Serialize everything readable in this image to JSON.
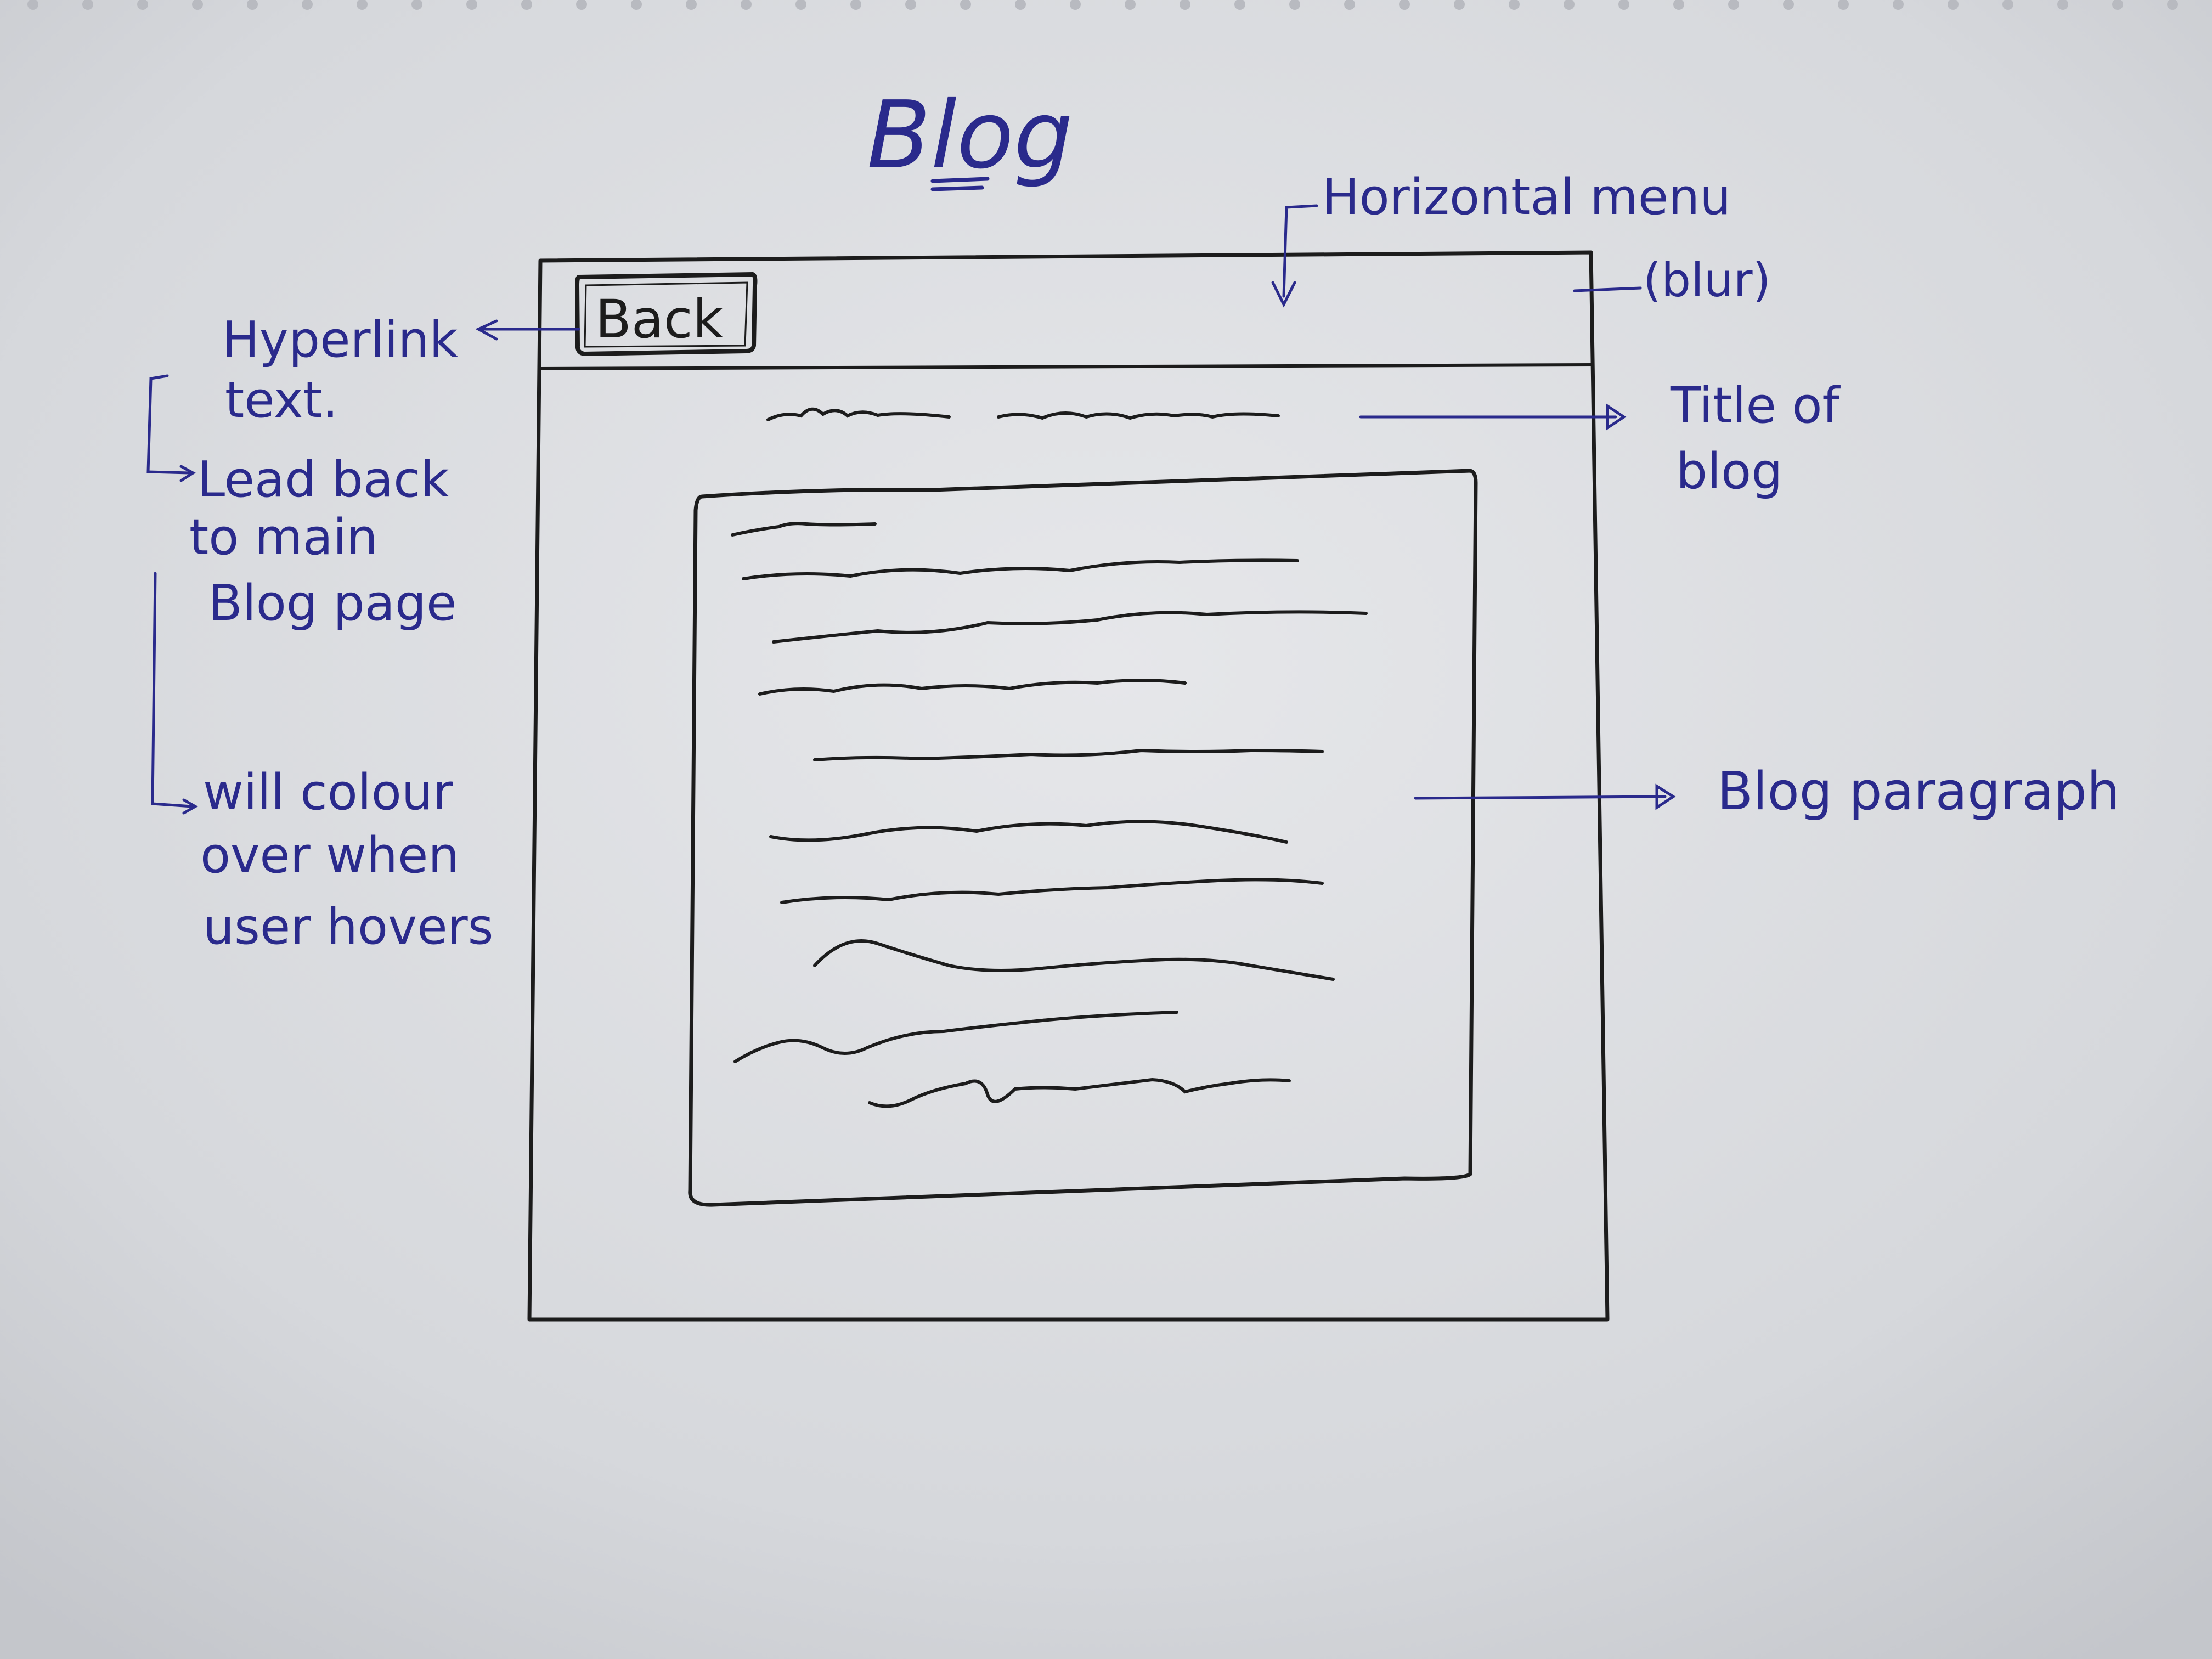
{
  "page_title": "Blog",
  "annotations": {
    "horizontal_menu": "Horizontal menu",
    "blur": "(blur)",
    "hyperlink_line1": "Hyperlink",
    "hyperlink_line2": "text.",
    "lead_back_line1": "Lead back",
    "lead_back_line2": "to main",
    "lead_back_line3": "Blog page",
    "hover_line1": "will colour",
    "hover_line2": "over when",
    "hover_line3": "user hovers",
    "title_of_blog_line1": "Title of",
    "title_of_blog_line2": "blog",
    "blog_paragraph": "Blog paragraph"
  },
  "wireframe": {
    "back_button_label": "Back"
  },
  "colors": {
    "pen_blue": "#2a2a8c",
    "pen_black": "#1c1c1c",
    "paper": "#dcdde1"
  }
}
